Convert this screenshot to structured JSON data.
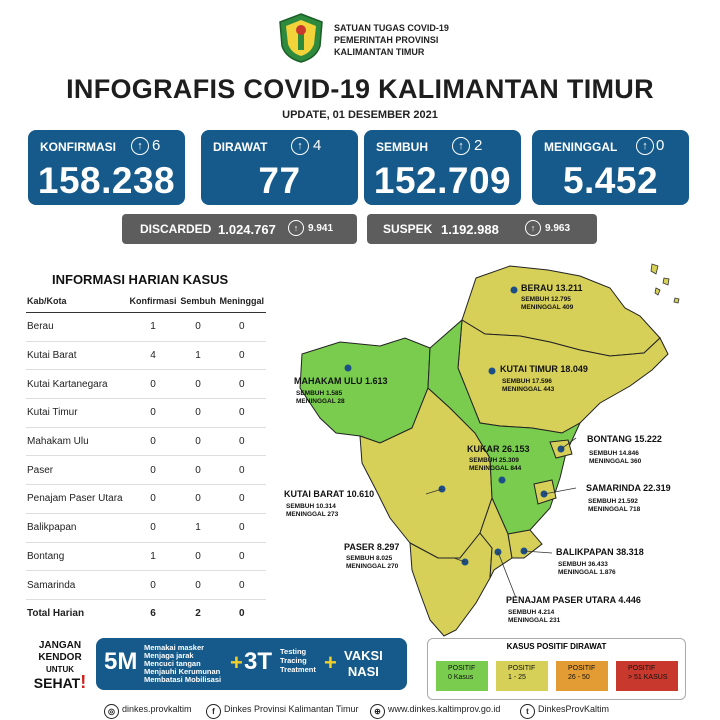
{
  "header": {
    "org_line1": "SATUAN TUGAS COVID-19",
    "org_line2": "PEMERINTAH PROVINSI",
    "org_line3": "KALIMANTAN TIMUR",
    "title": "INFOGRAFIS COVID-19 KALIMANTAN TIMUR",
    "update": "UPDATE, 01 DESEMBER 2021"
  },
  "stats": [
    {
      "label": "KONFIRMASI",
      "delta": "6",
      "value": "158.238"
    },
    {
      "label": "DIRAWAT",
      "delta": "4",
      "value": "77"
    },
    {
      "label": "SEMBUH",
      "delta": "2",
      "value": "152.709"
    },
    {
      "label": "MENINGGAL",
      "delta": "0",
      "value": "5.452"
    }
  ],
  "discarded": {
    "label": "DISCARDED",
    "value": "1.024.767",
    "delta": "9.941"
  },
  "suspek": {
    "label": "SUSPEK",
    "value": "1.192.988",
    "delta": "9.963"
  },
  "table": {
    "title": "INFORMASI HARIAN KASUS",
    "headers": [
      "Kab/Kota",
      "Konfirmasi",
      "Sembuh",
      "Meninggal"
    ],
    "rows": [
      [
        "Berau",
        "1",
        "0",
        "0"
      ],
      [
        "Kutai Barat",
        "4",
        "1",
        "0"
      ],
      [
        "Kutai Kartanegara",
        "0",
        "0",
        "0"
      ],
      [
        "Kutai Timur",
        "0",
        "0",
        "0"
      ],
      [
        "Mahakam Ulu",
        "0",
        "0",
        "0"
      ],
      [
        "Paser",
        "0",
        "0",
        "0"
      ],
      [
        "Penajam Paser Utara",
        "0",
        "0",
        "0"
      ],
      [
        "Balikpapan",
        "0",
        "1",
        "0"
      ],
      [
        "Bontang",
        "1",
        "0",
        "0"
      ],
      [
        "Samarinda",
        "0",
        "0",
        "0"
      ]
    ],
    "total": [
      "Total Harian",
      "6",
      "2",
      "0"
    ]
  },
  "map": {
    "regions": [
      {
        "name": "BERAU 13.211",
        "l1": "SEMBUH 12.795",
        "l2": "MENINGGAL 409"
      },
      {
        "name": "MAHAKAM ULU 1.613",
        "l1": "SEMBUH 1.585",
        "l2": "MENINGGAL 28"
      },
      {
        "name": "KUTAI TIMUR 18.049",
        "l1": "SEMBUH 17.596",
        "l2": "MENINGGAL 443"
      },
      {
        "name": "BONTANG 15.222",
        "l1": "SEMBUH 14.846",
        "l2": "MENINGGAL 360"
      },
      {
        "name": "KUKAR 26.153",
        "l1": "SEMBUH 25.309",
        "l2": "MENINGGAL 844"
      },
      {
        "name": "SAMARINDA 22.319",
        "l1": "SEMBUH 21.592",
        "l2": "MENINGGAL 718"
      },
      {
        "name": "KUTAI BARAT 10.610",
        "l1": "SEMBUH 10.314",
        "l2": "MENINGGAL 273"
      },
      {
        "name": "PASER 8.297",
        "l1": "SEMBUH 8.025",
        "l2": "MENINGGAL 270"
      },
      {
        "name": "BALIKPAPAN 38.318",
        "l1": "SEMBUH 36.433",
        "l2": "MENINGGAL 1.876"
      },
      {
        "name": "PENAJAM PASER UTARA 4.446",
        "l1": "SEMBUH 4.214",
        "l2": "MENINGGAL 231"
      }
    ],
    "colors": {
      "green": "#79cc4e",
      "yellow": "#d6d059",
      "orange": "#e39b33",
      "red": "#c8382c"
    }
  },
  "bottom": {
    "jangan": "JANGAN",
    "kendor": "KENDOR",
    "untuk": "UNTUK",
    "sehat": "SEHAT",
    "b5": "5M",
    "m5": [
      "Memakai masker",
      "Menjaga jarak",
      "Mencuci tangan",
      "Menjauhi Kerumunan",
      "Membatasi Mobilisasi"
    ],
    "b3": "3T",
    "t3": [
      "Testing",
      "Tracing",
      "Treatment"
    ],
    "vaksi": "VAKSI",
    "nasi": "NASI"
  },
  "legend": {
    "title": "KASUS POSITIF DIRAWAT",
    "items": [
      {
        "l1": "POSITIF",
        "l2": "0 Kasus"
      },
      {
        "l1": "POSITIF",
        "l2": "1 - 25"
      },
      {
        "l1": "POSITIF",
        "l2": "26 - 50"
      },
      {
        "l1": "POSITIF",
        "l2": "> 51 KASUS"
      }
    ]
  },
  "footer": {
    "ig": "dinkes.provkaltim",
    "fb": "Dinkes Provinsi Kalimantan Timur",
    "web": "www.dinkes.kaltimprov.go.id",
    "tw": "DinkesProvKaltim"
  }
}
